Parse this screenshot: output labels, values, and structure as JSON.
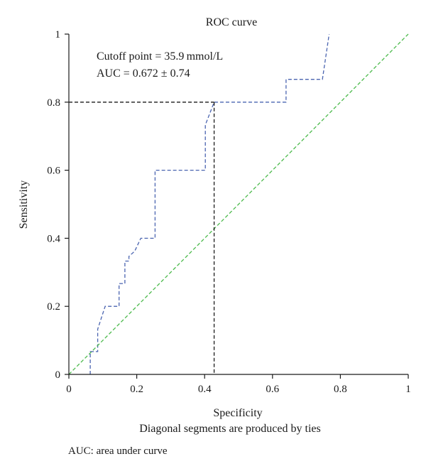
{
  "chart_data": {
    "type": "line",
    "title": "ROC curve",
    "xlabel": "Specificity",
    "ylabel": "Sensitivity",
    "xlim": [
      0,
      1
    ],
    "ylim": [
      0,
      1
    ],
    "x_ticks": [
      0,
      0.2,
      0.4,
      0.6,
      0.8,
      1
    ],
    "x_tick_labels": [
      "0",
      "0.2",
      "0.4",
      "0.6",
      "0.8",
      "1"
    ],
    "y_ticks": [
      0,
      0.2,
      0.4,
      0.6,
      0.8,
      1
    ],
    "y_tick_labels": [
      "0",
      "0.2",
      "0.4",
      "0.6",
      "0.8",
      "1"
    ],
    "grid": false,
    "annotations": [
      "Cutoff point = 35.9 mmol/L",
      "AUC = 0.672 ± 0.74"
    ],
    "note": "Diagonal segments are produced by ties",
    "series": [
      {
        "line_style": "dashed",
        "color": "#4a64b0",
        "x": [
          0.063,
          0.063,
          0.085,
          0.085,
          0.107,
          0.148,
          0.148,
          0.165,
          0.165,
          0.177,
          0.177,
          0.194,
          0.212,
          0.254,
          0.254,
          0.402,
          0.402,
          0.428,
          0.428,
          0.64,
          0.64,
          0.747,
          0.767
        ],
        "y": [
          0,
          0.067,
          0.067,
          0.133,
          0.2,
          0.2,
          0.267,
          0.267,
          0.333,
          0.333,
          0.347,
          0.362,
          0.4,
          0.4,
          0.6,
          0.6,
          0.733,
          0.8,
          0.8,
          0.8,
          0.867,
          0.867,
          1
        ]
      },
      {
        "line_style": "dashed",
        "color": "#4cba4c",
        "x": [
          0,
          1
        ],
        "y": [
          0,
          1
        ]
      }
    ],
    "cutoff_point": {
      "x": 0.428,
      "y": 0.8,
      "color": "#1a1a1a"
    }
  },
  "footnote": "AUC: area under curve"
}
